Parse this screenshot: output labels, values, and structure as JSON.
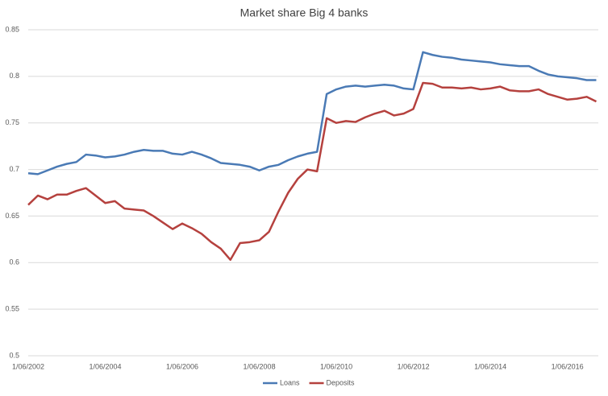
{
  "chart_data": {
    "type": "line",
    "title": "Market share Big 4 banks",
    "categories": [
      "1/06/2002",
      null,
      null,
      null,
      null,
      null,
      null,
      null,
      "1/06/2004",
      null,
      null,
      null,
      null,
      null,
      null,
      null,
      "1/06/2006",
      null,
      null,
      null,
      null,
      null,
      null,
      null,
      "1/06/2008",
      null,
      null,
      null,
      null,
      null,
      null,
      null,
      "1/06/2010",
      null,
      null,
      null,
      null,
      null,
      null,
      null,
      "1/06/2012",
      null,
      null,
      null,
      null,
      null,
      null,
      null,
      "1/06/2014",
      null,
      null,
      null,
      null,
      null,
      null,
      null,
      "1/06/2016",
      null,
      null,
      null
    ],
    "series": [
      {
        "name": "Loans",
        "color": "#4a7ab5",
        "values": [
          0.696,
          0.695,
          0.699,
          0.703,
          0.706,
          0.708,
          0.716,
          0.715,
          0.713,
          0.714,
          0.716,
          0.719,
          0.721,
          0.72,
          0.72,
          0.717,
          0.716,
          0.719,
          0.716,
          0.712,
          0.707,
          0.706,
          0.705,
          0.703,
          0.699,
          0.703,
          0.705,
          0.71,
          0.714,
          0.717,
          0.719,
          0.781,
          0.786,
          0.789,
          0.79,
          0.789,
          0.79,
          0.791,
          0.79,
          0.787,
          0.786,
          0.826,
          0.823,
          0.821,
          0.82,
          0.818,
          0.817,
          0.816,
          0.815,
          0.813,
          0.812,
          0.811,
          0.811,
          0.806,
          0.802,
          0.8,
          0.799,
          0.798,
          0.796,
          0.796
        ]
      },
      {
        "name": "Deposits",
        "color": "#b5413e",
        "values": [
          0.662,
          0.672,
          0.668,
          0.673,
          0.673,
          0.677,
          0.68,
          0.672,
          0.664,
          0.666,
          0.658,
          0.657,
          0.656,
          0.65,
          0.643,
          0.636,
          0.642,
          0.637,
          0.631,
          0.622,
          0.615,
          0.603,
          0.621,
          0.622,
          0.624,
          0.633,
          0.655,
          0.675,
          0.69,
          0.7,
          0.698,
          0.755,
          0.75,
          0.752,
          0.751,
          0.756,
          0.76,
          0.763,
          0.758,
          0.76,
          0.765,
          0.793,
          0.792,
          0.788,
          0.788,
          0.787,
          0.788,
          0.786,
          0.787,
          0.789,
          0.785,
          0.784,
          0.784,
          0.786,
          0.781,
          0.778,
          0.775,
          0.776,
          0.778,
          0.773
        ]
      }
    ],
    "ylim": [
      0.5,
      0.85
    ],
    "yticks": [
      0.5,
      0.55,
      0.6,
      0.65,
      0.7,
      0.75,
      0.8,
      0.85
    ],
    "grid": true,
    "legend": "bottom"
  }
}
